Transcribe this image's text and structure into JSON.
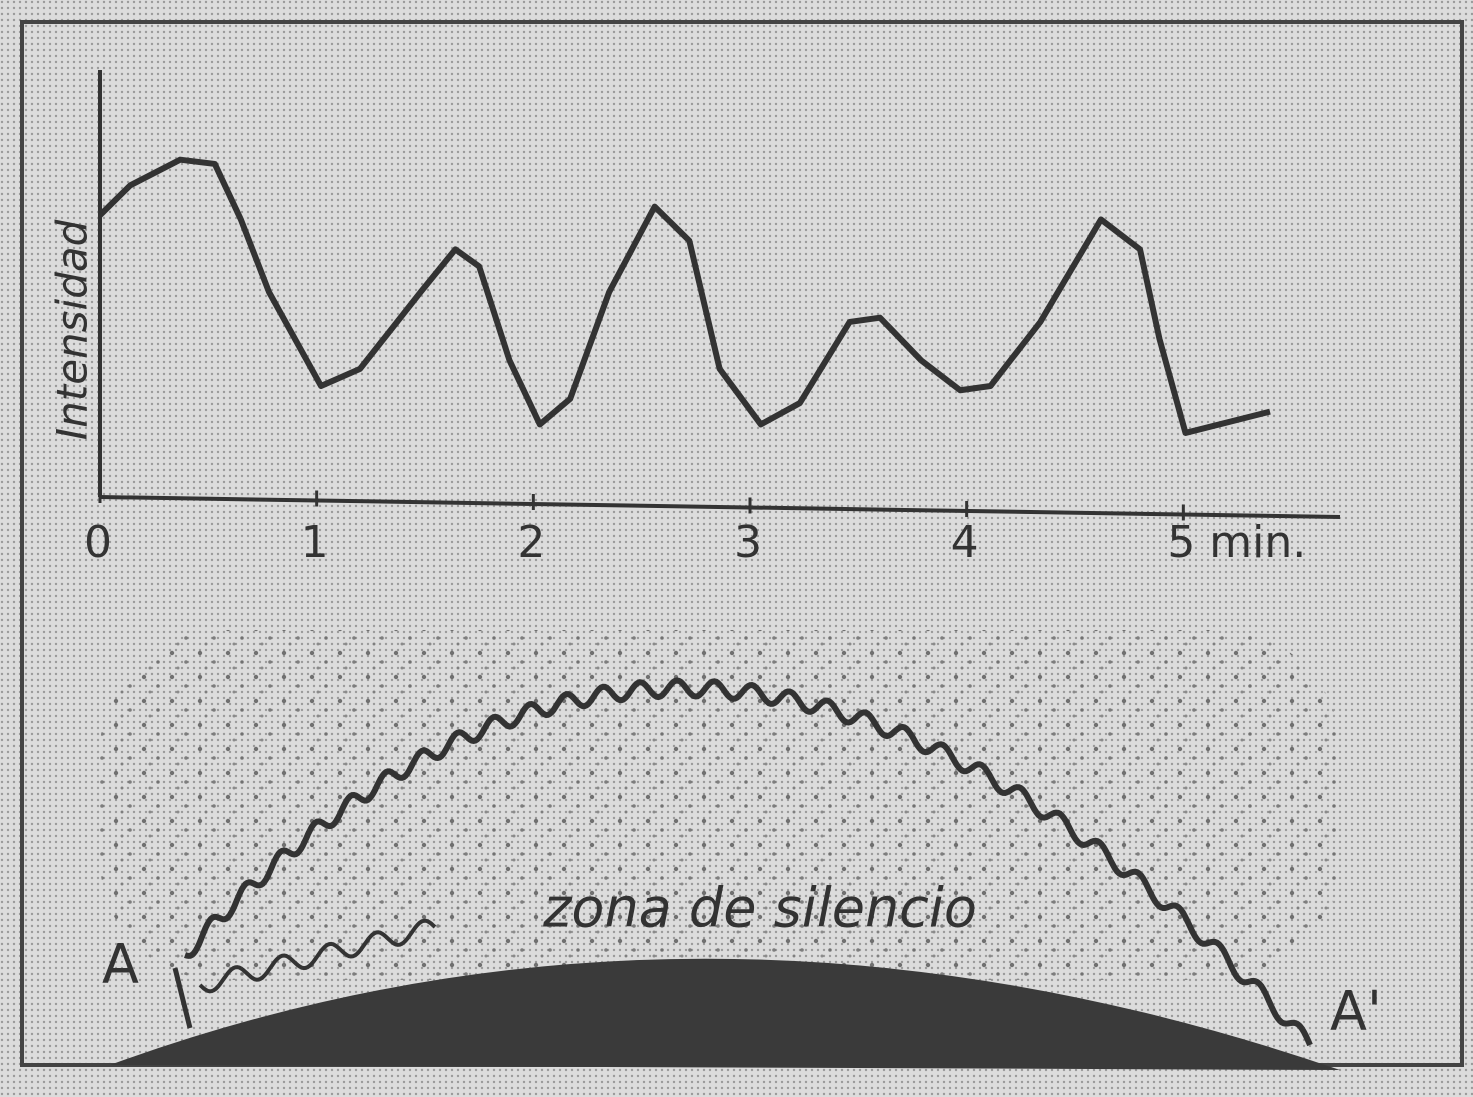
{
  "chart_data": {
    "type": "line",
    "y_label": "Intensidad",
    "x": [
      0,
      0.14,
      0.37,
      0.53,
      0.65,
      0.78,
      1.02,
      1.2,
      1.48,
      1.64,
      1.75,
      1.89,
      2.03,
      2.17,
      2.35,
      2.56,
      2.72,
      2.86,
      3.05,
      3.23,
      3.46,
      3.6,
      3.79,
      3.97,
      4.11,
      4.34,
      4.62,
      4.8,
      4.89,
      5.01,
      5.4
    ],
    "values": [
      6.6,
      7.3,
      7.9,
      7.8,
      6.5,
      4.8,
      2.6,
      3.0,
      4.8,
      5.8,
      5.4,
      3.2,
      1.7,
      2.3,
      4.8,
      6.8,
      6.0,
      3.0,
      1.7,
      2.2,
      4.1,
      4.2,
      3.2,
      2.5,
      2.6,
      4.1,
      6.5,
      5.8,
      3.7,
      1.5,
      2.0
    ],
    "color": "#333333",
    "xlim": [
      0,
      5.7
    ],
    "ylim": [
      0,
      10
    ],
    "xticks": [
      0,
      1,
      2,
      3,
      4,
      {
        "value": 5,
        "label": "5 min."
      }
    ]
  },
  "diagram": {
    "label": "zona de silencio",
    "start": "A",
    "end": "A'"
  }
}
